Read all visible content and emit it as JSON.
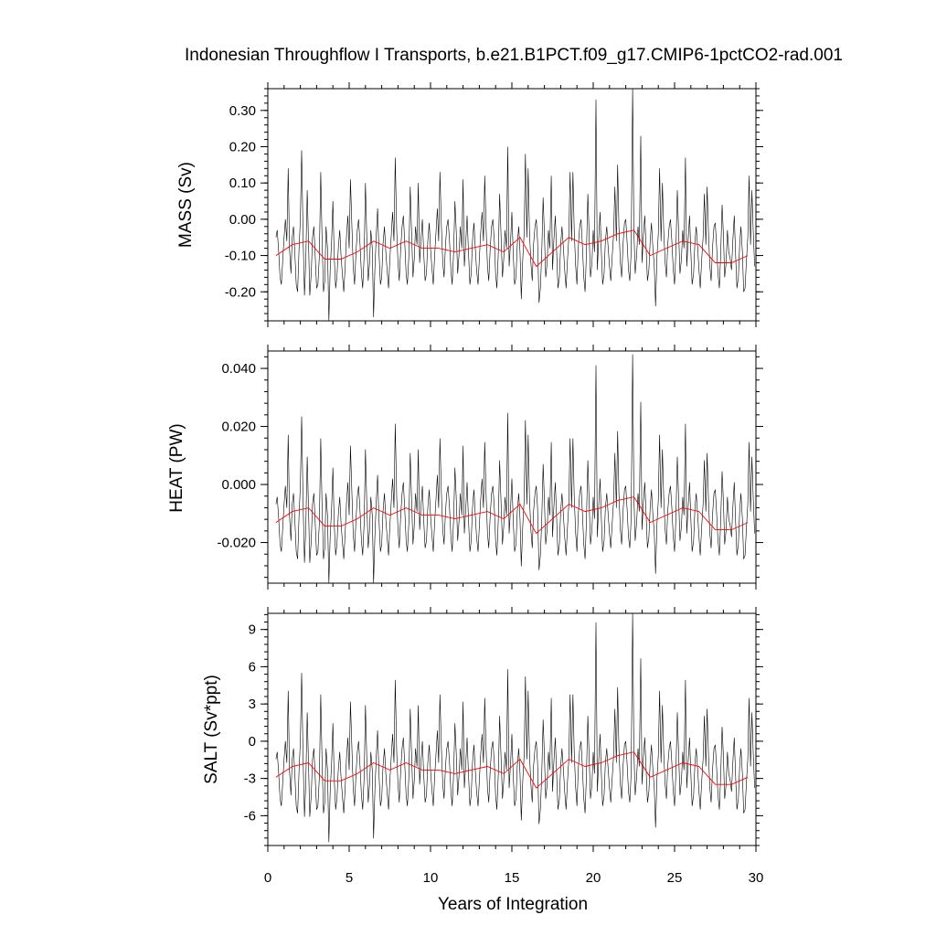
{
  "chart_data": {
    "type": "line",
    "title": "Indonesian Throughflow I Transports, b.e21.B1PCT.f09_g17.CMIP6-1pctCO2-rad.001",
    "xlabel": "Years of Integration",
    "xlim": [
      0,
      30
    ],
    "x_ticks": [
      "0",
      "5",
      "10",
      "15",
      "20",
      "25",
      "30"
    ],
    "colors": {
      "monthly": "#000000",
      "annual_mean": "#ff0000"
    },
    "panels": [
      {
        "ylabel": "MASS (Sv)",
        "ylim": [
          -0.28,
          0.36
        ],
        "y_ticks": [
          {
            "v": 0.3,
            "label": "0.30"
          },
          {
            "v": 0.2,
            "label": "0.20"
          },
          {
            "v": 0.1,
            "label": "0.10"
          },
          {
            "v": 0.0,
            "label": "0.00"
          },
          {
            "v": -0.1,
            "label": "-0.10"
          },
          {
            "v": -0.2,
            "label": "-0.20"
          }
        ],
        "monthly_x": [
          0.5,
          0.58,
          0.67,
          0.75,
          0.83,
          0.92,
          1,
          1.08,
          1.17,
          1.25,
          1.33,
          1.42,
          1.5,
          1.58,
          1.67,
          1.75,
          1.83,
          1.92,
          2,
          2.08,
          2.17,
          2.25,
          2.33,
          2.42,
          2.5,
          2.58,
          2.67,
          2.75,
          2.83,
          2.92,
          3,
          3.08,
          3.17,
          3.25,
          3.33,
          3.42,
          3.5,
          3.58,
          3.67,
          3.75,
          3.83,
          3.92,
          4,
          4.08,
          4.17,
          4.25,
          4.33,
          4.42,
          4.5,
          4.58,
          4.67,
          4.75,
          4.83,
          4.92,
          5,
          5.08,
          5.17,
          5.25,
          5.33,
          5.42,
          5.5,
          5.58,
          5.67,
          5.75,
          5.83,
          5.92,
          6,
          6.08,
          6.17,
          6.25,
          6.33,
          6.42,
          6.5,
          6.58,
          6.67,
          6.75,
          6.83,
          6.92,
          7,
          7.08,
          7.17,
          7.25,
          7.33,
          7.42,
          7.5,
          7.58,
          7.67,
          7.75,
          7.83,
          7.92,
          8,
          8.08,
          8.17,
          8.25,
          8.33,
          8.42,
          8.5,
          8.58,
          8.67,
          8.75,
          8.83,
          8.92,
          9,
          9.08,
          9.17,
          9.25,
          9.33,
          9.42,
          9.5,
          9.58,
          9.67,
          9.75,
          9.83,
          9.92,
          10,
          10.08,
          10.17,
          10.25,
          10.33,
          10.42,
          10.5,
          10.58,
          10.67,
          10.75,
          10.83,
          10.92,
          11,
          11.08,
          11.17,
          11.25,
          11.33,
          11.42,
          11.5,
          11.58,
          11.67,
          11.75,
          11.83,
          11.92,
          12,
          12.08,
          12.17,
          12.25,
          12.33,
          12.42,
          12.5,
          12.58,
          12.67,
          12.75,
          12.83,
          12.92,
          13,
          13.08,
          13.17,
          13.25,
          13.33,
          13.42,
          13.5,
          13.58,
          13.67,
          13.75,
          13.83,
          13.92,
          14,
          14.08,
          14.17,
          14.25,
          14.33,
          14.42,
          14.5,
          14.58,
          14.67,
          14.75,
          14.83,
          14.92,
          15,
          15.08,
          15.17,
          15.25,
          15.33,
          15.42,
          15.5,
          15.58,
          15.67,
          15.75,
          15.83,
          15.92,
          16,
          16.08,
          16.17,
          16.25,
          16.33,
          16.42,
          16.5,
          16.58,
          16.67,
          16.75,
          16.83,
          16.92,
          17,
          17.08,
          17.17,
          17.25,
          17.33,
          17.42,
          17.5,
          17.58,
          17.67,
          17.75,
          17.83,
          17.92,
          18,
          18.08,
          18.17,
          18.25,
          18.33,
          18.42,
          18.5,
          18.58,
          18.67,
          18.75,
          18.83,
          18.92,
          19,
          19.08,
          19.17,
          19.25,
          19.33,
          19.42,
          19.5,
          19.58,
          19.67,
          19.75,
          19.83,
          19.92,
          20,
          20.08,
          20.17,
          20.25,
          20.33,
          20.42,
          20.5,
          20.58,
          20.67,
          20.75,
          20.83,
          20.92,
          21,
          21.08,
          21.17,
          21.25,
          21.33,
          21.42,
          21.5,
          21.58,
          21.67,
          21.75,
          21.83,
          21.92,
          22,
          22.08,
          22.17,
          22.25,
          22.33,
          22.42,
          22.5,
          22.58,
          22.67,
          22.75,
          22.83,
          22.92,
          23,
          23.08,
          23.17,
          23.25,
          23.33,
          23.42,
          23.5,
          23.58,
          23.67,
          23.75,
          23.83,
          23.92,
          24,
          24.08,
          24.17,
          24.25,
          24.33,
          24.42,
          24.5,
          24.58,
          24.67,
          24.75,
          24.83,
          24.92,
          25,
          25.08,
          25.17,
          25.25,
          25.33,
          25.42,
          25.5,
          25.58,
          25.67,
          25.75,
          25.83,
          25.92,
          26,
          26.08,
          26.17,
          26.25,
          26.33,
          26.42,
          26.5,
          26.58,
          26.67,
          26.75,
          26.83,
          26.92,
          27,
          27.08,
          27.17,
          27.25,
          27.33,
          27.42,
          27.5,
          27.58,
          27.67,
          27.75,
          27.83,
          27.92,
          28,
          28.08,
          28.17,
          28.25,
          28.33,
          28.42,
          28.5,
          28.58,
          28.67,
          28.75,
          28.83,
          28.92,
          29,
          29.08,
          29.17,
          29.25,
          29.33,
          29.42,
          29.5,
          29.58,
          29.67,
          29.75,
          29.83,
          29.92
        ],
        "monthly": [
          -0.05,
          -0.03,
          -0.09,
          -0.16,
          -0.18,
          -0.11,
          -0.05,
          0.0,
          -0.06,
          0.14,
          -0.08,
          -0.15,
          -0.05,
          -0.02,
          -0.1,
          -0.18,
          -0.2,
          -0.08,
          0.0,
          0.19,
          -0.05,
          -0.21,
          -0.12,
          0.08,
          -0.06,
          -0.21,
          -0.15,
          -0.05,
          -0.02,
          -0.11,
          -0.19,
          -0.18,
          -0.1,
          0.13,
          -0.05,
          -0.2,
          -0.17,
          -0.02,
          -0.08,
          -0.28,
          -0.14,
          -0.06,
          0.05,
          -0.1,
          -0.19,
          -0.16,
          -0.08,
          -0.03,
          -0.1,
          -0.15,
          -0.2,
          -0.13,
          -0.05,
          0.01,
          -0.08,
          0.11,
          -0.02,
          -0.13,
          -0.18,
          -0.09,
          -0.03,
          0.0,
          -0.07,
          -0.15,
          -0.19,
          -0.1,
          0.1,
          -0.04,
          -0.17,
          -0.12,
          -0.03,
          -0.08,
          -0.27,
          -0.14,
          -0.04,
          0.03,
          -0.09,
          -0.18,
          -0.16,
          -0.07,
          -0.02,
          -0.09,
          -0.14,
          -0.19,
          -0.11,
          -0.05,
          0.02,
          -0.06,
          0.17,
          -0.03,
          -0.12,
          -0.17,
          -0.08,
          -0.02,
          0.01,
          -0.07,
          -0.15,
          -0.18,
          -0.1,
          0.09,
          -0.03,
          -0.16,
          -0.11,
          -0.02,
          -0.07,
          0.1,
          -0.12,
          -0.05,
          0.0,
          -0.09,
          -0.17,
          -0.15,
          -0.06,
          -0.01,
          -0.08,
          -0.13,
          -0.18,
          -0.1,
          -0.04,
          0.03,
          -0.06,
          0.13,
          -0.02,
          -0.12,
          -0.16,
          -0.07,
          -0.02,
          0.0,
          -0.06,
          -0.14,
          -0.18,
          -0.09,
          0.05,
          -0.03,
          -0.15,
          -0.1,
          -0.02,
          -0.08,
          0.11,
          -0.13,
          -0.06,
          0.01,
          -0.09,
          -0.18,
          -0.15,
          -0.06,
          -0.01,
          -0.08,
          -0.14,
          -0.18,
          -0.11,
          -0.04,
          0.02,
          -0.06,
          0.12,
          -0.03,
          -0.13,
          -0.17,
          -0.08,
          -0.02,
          0.0,
          -0.06,
          -0.15,
          -0.19,
          -0.09,
          0.07,
          -0.04,
          -0.16,
          -0.11,
          -0.03,
          -0.08,
          0.2,
          -0.13,
          -0.06,
          0.02,
          -0.09,
          -0.18,
          -0.16,
          -0.07,
          -0.02,
          -0.09,
          -0.22,
          -0.11,
          -0.04,
          0.18,
          -0.05,
          0.14,
          -0.03,
          -0.12,
          -0.17,
          -0.07,
          -0.02,
          0.0,
          -0.06,
          -0.23,
          -0.19,
          -0.1,
          0.06,
          -0.04,
          -0.16,
          -0.12,
          -0.03,
          -0.08,
          0.12,
          -0.14,
          -0.06,
          0.01,
          -0.09,
          -0.19,
          -0.16,
          -0.07,
          -0.02,
          -0.08,
          -0.14,
          -0.19,
          -0.11,
          -0.05,
          0.13,
          -0.06,
          0.13,
          -0.03,
          -0.13,
          -0.18,
          -0.08,
          -0.02,
          0.0,
          -0.07,
          -0.16,
          -0.2,
          -0.1,
          0.07,
          -0.04,
          -0.16,
          -0.12,
          -0.03,
          -0.09,
          0.33,
          -0.14,
          -0.06,
          0.02,
          -0.09,
          -0.18,
          -0.15,
          -0.06,
          -0.02,
          -0.08,
          -0.13,
          -0.17,
          -0.1,
          -0.04,
          0.09,
          -0.06,
          0.15,
          -0.02,
          -0.12,
          -0.16,
          -0.07,
          -0.01,
          0.0,
          -0.06,
          -0.14,
          -0.17,
          -0.09,
          0.36,
          -0.03,
          -0.15,
          -0.1,
          -0.02,
          -0.07,
          0.23,
          -0.12,
          -0.05,
          0.01,
          -0.08,
          -0.17,
          -0.14,
          -0.06,
          -0.01,
          -0.08,
          -0.13,
          -0.24,
          -0.1,
          -0.04,
          0.14,
          -0.06,
          0.1,
          -0.03,
          -0.12,
          -0.16,
          -0.07,
          -0.02,
          0.0,
          -0.06,
          -0.14,
          -0.18,
          -0.09,
          0.08,
          -0.04,
          -0.15,
          -0.11,
          -0.03,
          -0.08,
          0.17,
          -0.13,
          -0.06,
          0.01,
          -0.09,
          -0.18,
          -0.15,
          -0.06,
          -0.02,
          -0.08,
          -0.14,
          -0.19,
          -0.11,
          -0.05,
          0.07,
          -0.07,
          0.09,
          -0.03,
          -0.13,
          -0.17,
          -0.08,
          -0.02,
          -0.01,
          -0.07,
          -0.15,
          -0.19,
          -0.1,
          0.04,
          -0.04,
          -0.16,
          -0.12,
          -0.03,
          -0.09,
          -0.11,
          -0.14,
          -0.06,
          0.01,
          -0.1,
          -0.19,
          -0.16,
          -0.07,
          -0.02,
          -0.09,
          -0.2,
          -0.19,
          -0.11,
          -0.05,
          0.12,
          -0.07,
          0.08,
          -0.03,
          -0.13,
          -0.18,
          -0.08,
          -0.02,
          -0.01,
          -0.07,
          -0.15,
          -0.2,
          -0.1,
          0.03
        ],
        "annual_x": [
          0.5,
          1.5,
          2.5,
          3.5,
          4.5,
          5.5,
          6.5,
          7.5,
          8.5,
          9.5,
          10.5,
          11.5,
          12.5,
          13.5,
          14.5,
          15.5,
          16.5,
          17.5,
          18.5,
          19.5,
          20.5,
          21.5,
          22.5,
          23.5,
          24.5,
          25.5,
          26.5,
          27.5,
          28.5,
          29.5
        ],
        "annual": [
          -0.1,
          -0.07,
          -0.06,
          -0.11,
          -0.11,
          -0.09,
          -0.06,
          -0.08,
          -0.06,
          -0.08,
          -0.08,
          -0.09,
          -0.08,
          -0.07,
          -0.09,
          -0.05,
          -0.13,
          -0.09,
          -0.05,
          -0.07,
          -0.06,
          -0.04,
          -0.03,
          -0.1,
          -0.08,
          -0.06,
          -0.07,
          -0.12,
          -0.12,
          -0.1
        ]
      },
      {
        "ylabel": "HEAT (PW)",
        "ylim": [
          -0.034,
          0.046
        ],
        "y_ticks": [
          {
            "v": 0.04,
            "label": "0.040"
          },
          {
            "v": 0.02,
            "label": "0.020"
          },
          {
            "v": 0.0,
            "label": "0.000"
          },
          {
            "v": -0.02,
            "label": "-0.020"
          }
        ],
        "scale_from_mass": 0.126,
        "offset_from_mass": -0.0005
      },
      {
        "ylabel": "SALT (Sv*ppt)",
        "ylim": [
          -8.4,
          10.3
        ],
        "y_ticks": [
          {
            "v": 9,
            "label": "9"
          },
          {
            "v": 6,
            "label": "6"
          },
          {
            "v": 3,
            "label": "3"
          },
          {
            "v": 0,
            "label": "0"
          },
          {
            "v": -3,
            "label": "-3"
          },
          {
            "v": -6,
            "label": "-6"
          }
        ],
        "scale_from_mass": 29.0,
        "offset_from_mass": 0.0
      }
    ]
  }
}
